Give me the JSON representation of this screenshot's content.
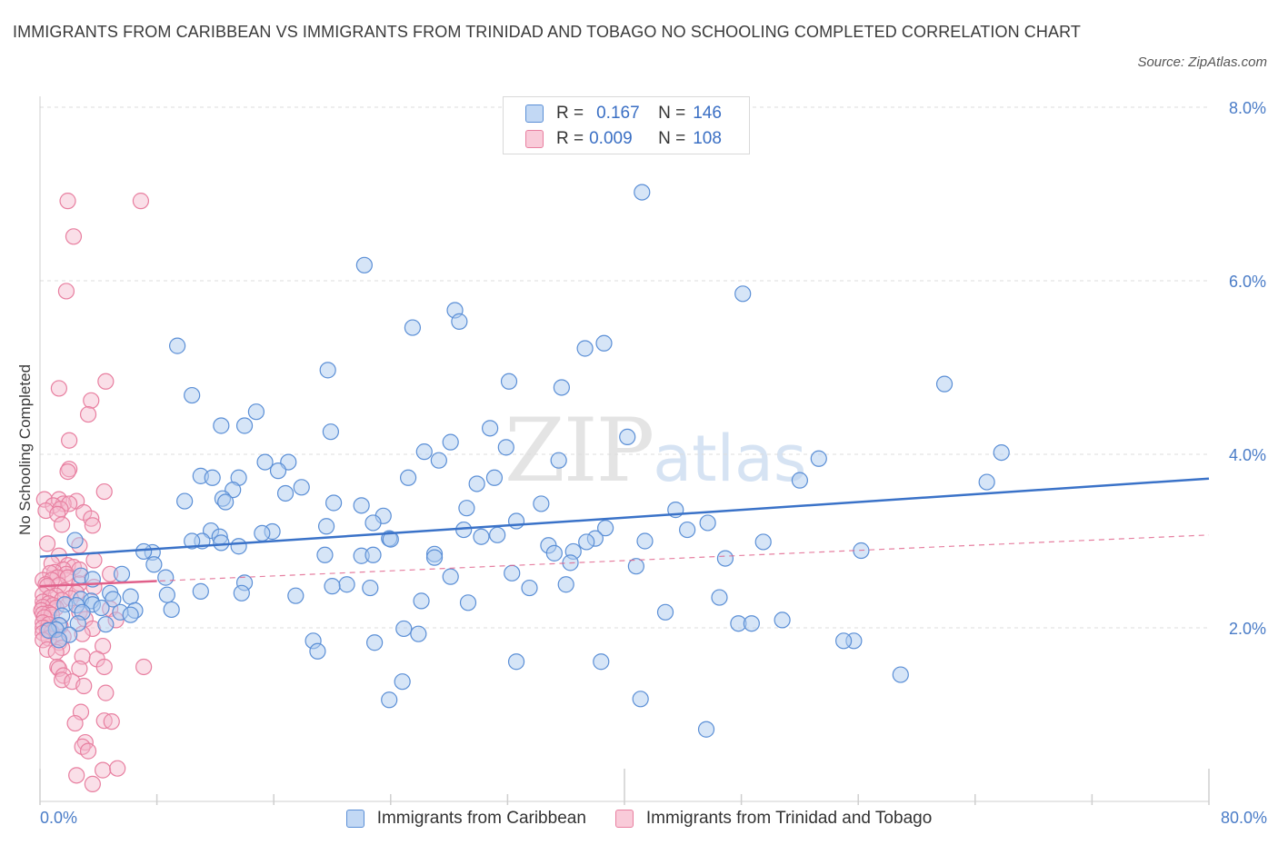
{
  "title": "IMMIGRANTS FROM CARIBBEAN VS IMMIGRANTS FROM TRINIDAD AND TOBAGO NO SCHOOLING COMPLETED CORRELATION CHART",
  "source": "Source: ZipAtlas.com",
  "watermark": {
    "zip": "ZIP",
    "atlas": "atlas"
  },
  "legend": {
    "r_label": "R =",
    "n_label": "N =",
    "rows": [
      {
        "r": "0.167",
        "n": "146"
      },
      {
        "r": "0.009",
        "n": "108"
      }
    ]
  },
  "colors": {
    "blue_fill": "#aecbf0",
    "blue_stroke": "#5b8fd6",
    "blue_line": "#3a72c8",
    "pink_fill": "#f5b7cb",
    "pink_stroke": "#e87fa0",
    "pink_line": "#e0608a",
    "axis_text": "#4a7cc7"
  },
  "chart_data": {
    "type": "scatter",
    "xlabel": "",
    "ylabel": "No Schooling Completed",
    "xlim": [
      0,
      80
    ],
    "ylim": [
      0,
      8
    ],
    "x_tick_labels": [
      "0.0%",
      "80.0%"
    ],
    "y_ticks": [
      2,
      4,
      6,
      8
    ],
    "y_tick_labels": [
      "2.0%",
      "4.0%",
      "6.0%",
      "8.0%"
    ],
    "grid": true,
    "legend_position": "top-center",
    "series": [
      {
        "name": "Immigrants from Caribbean",
        "color": "blue",
        "trend": {
          "x": [
            0,
            80
          ],
          "y": [
            2.82,
            3.72
          ],
          "style": "solid"
        },
        "points": [
          [
            41.2,
            7.02
          ],
          [
            22.2,
            6.18
          ],
          [
            48.1,
            5.85
          ],
          [
            28.4,
            5.66
          ],
          [
            28.7,
            5.53
          ],
          [
            25.5,
            5.46
          ],
          [
            38.6,
            5.28
          ],
          [
            37.3,
            5.22
          ],
          [
            9.4,
            5.25
          ],
          [
            19.7,
            4.97
          ],
          [
            32.1,
            4.84
          ],
          [
            61.9,
            4.81
          ],
          [
            35.7,
            4.77
          ],
          [
            10.4,
            4.68
          ],
          [
            14.8,
            4.49
          ],
          [
            12.4,
            4.33
          ],
          [
            14.0,
            4.33
          ],
          [
            30.8,
            4.3
          ],
          [
            19.9,
            4.26
          ],
          [
            40.2,
            4.2
          ],
          [
            28.1,
            4.14
          ],
          [
            31.9,
            4.08
          ],
          [
            26.3,
            4.03
          ],
          [
            65.8,
            4.02
          ],
          [
            53.3,
            3.95
          ],
          [
            35.5,
            3.93
          ],
          [
            27.3,
            3.93
          ],
          [
            15.4,
            3.91
          ],
          [
            17.0,
            3.91
          ],
          [
            16.3,
            3.81
          ],
          [
            11.0,
            3.75
          ],
          [
            11.8,
            3.73
          ],
          [
            13.6,
            3.73
          ],
          [
            25.2,
            3.73
          ],
          [
            31.1,
            3.73
          ],
          [
            52.0,
            3.7
          ],
          [
            64.8,
            3.68
          ],
          [
            29.9,
            3.66
          ],
          [
            17.9,
            3.62
          ],
          [
            13.2,
            3.59
          ],
          [
            16.8,
            3.55
          ],
          [
            12.5,
            3.49
          ],
          [
            9.9,
            3.46
          ],
          [
            12.7,
            3.45
          ],
          [
            20.1,
            3.44
          ],
          [
            34.3,
            3.43
          ],
          [
            22.0,
            3.41
          ],
          [
            29.2,
            3.38
          ],
          [
            43.5,
            3.36
          ],
          [
            23.5,
            3.29
          ],
          [
            32.6,
            3.23
          ],
          [
            22.8,
            3.21
          ],
          [
            45.7,
            3.21
          ],
          [
            19.6,
            3.17
          ],
          [
            38.7,
            3.15
          ],
          [
            44.3,
            3.13
          ],
          [
            29.0,
            3.13
          ],
          [
            11.7,
            3.12
          ],
          [
            15.9,
            3.11
          ],
          [
            15.2,
            3.09
          ],
          [
            31.3,
            3.07
          ],
          [
            12.3,
            3.05
          ],
          [
            30.2,
            3.05
          ],
          [
            38.0,
            3.03
          ],
          [
            23.9,
            3.03
          ],
          [
            24.0,
            3.02
          ],
          [
            11.1,
            3.0
          ],
          [
            41.4,
            3.0
          ],
          [
            2.4,
            3.01
          ],
          [
            10.4,
            3.0
          ],
          [
            37.4,
            2.99
          ],
          [
            49.5,
            2.99
          ],
          [
            12.4,
            2.98
          ],
          [
            34.8,
            2.95
          ],
          [
            13.6,
            2.94
          ],
          [
            36.5,
            2.88
          ],
          [
            35.2,
            2.86
          ],
          [
            7.7,
            2.87
          ],
          [
            56.2,
            2.89
          ],
          [
            7.1,
            2.88
          ],
          [
            27.0,
            2.85
          ],
          [
            19.5,
            2.84
          ],
          [
            22.0,
            2.83
          ],
          [
            22.8,
            2.84
          ],
          [
            27.0,
            2.81
          ],
          [
            46.9,
            2.8
          ],
          [
            36.3,
            2.75
          ],
          [
            7.8,
            2.73
          ],
          [
            40.8,
            2.71
          ],
          [
            32.3,
            2.63
          ],
          [
            5.6,
            2.62
          ],
          [
            2.8,
            2.6
          ],
          [
            8.6,
            2.58
          ],
          [
            28.1,
            2.59
          ],
          [
            3.6,
            2.56
          ],
          [
            14.0,
            2.52
          ],
          [
            21.0,
            2.5
          ],
          [
            36.0,
            2.5
          ],
          [
            20.0,
            2.48
          ],
          [
            22.6,
            2.46
          ],
          [
            33.5,
            2.46
          ],
          [
            11.0,
            2.42
          ],
          [
            4.8,
            2.4
          ],
          [
            13.8,
            2.4
          ],
          [
            8.7,
            2.38
          ],
          [
            17.5,
            2.37
          ],
          [
            6.2,
            2.36
          ],
          [
            46.5,
            2.35
          ],
          [
            2.8,
            2.33
          ],
          [
            5.0,
            2.33
          ],
          [
            26.1,
            2.31
          ],
          [
            3.5,
            2.31
          ],
          [
            29.3,
            2.29
          ],
          [
            1.7,
            2.27
          ],
          [
            3.6,
            2.27
          ],
          [
            2.5,
            2.26
          ],
          [
            4.2,
            2.23
          ],
          [
            6.5,
            2.2
          ],
          [
            9.0,
            2.21
          ],
          [
            42.8,
            2.18
          ],
          [
            2.9,
            2.18
          ],
          [
            5.5,
            2.18
          ],
          [
            6.2,
            2.15
          ],
          [
            1.5,
            2.14
          ],
          [
            50.8,
            2.09
          ],
          [
            47.8,
            2.05
          ],
          [
            48.7,
            2.05
          ],
          [
            2.6,
            2.05
          ],
          [
            4.5,
            2.04
          ],
          [
            1.3,
            2.03
          ],
          [
            1.1,
            1.98
          ],
          [
            24.9,
            1.99
          ],
          [
            0.6,
            1.97
          ],
          [
            25.9,
            1.93
          ],
          [
            2.0,
            1.92
          ],
          [
            1.3,
            1.86
          ],
          [
            18.7,
            1.85
          ],
          [
            55.7,
            1.85
          ],
          [
            55.0,
            1.85
          ],
          [
            22.9,
            1.83
          ],
          [
            19.0,
            1.73
          ],
          [
            32.6,
            1.61
          ],
          [
            38.4,
            1.61
          ],
          [
            58.9,
            1.46
          ],
          [
            24.8,
            1.38
          ],
          [
            23.9,
            1.17
          ],
          [
            41.1,
            1.18
          ],
          [
            45.6,
            0.83
          ]
        ]
      },
      {
        "name": "Immigrants from Trinidad and Tobago",
        "color": "pink",
        "trend": {
          "x": [
            0,
            80
          ],
          "y": [
            2.48,
            3.07
          ],
          "style": "dashed",
          "solid_until": 8
        },
        "points": [
          [
            1.9,
            6.92
          ],
          [
            6.9,
            6.92
          ],
          [
            2.3,
            6.51
          ],
          [
            1.8,
            5.88
          ],
          [
            4.5,
            4.84
          ],
          [
            1.3,
            4.76
          ],
          [
            3.5,
            4.62
          ],
          [
            3.3,
            4.46
          ],
          [
            2.0,
            4.16
          ],
          [
            2.0,
            3.83
          ],
          [
            1.9,
            3.8
          ],
          [
            4.4,
            3.57
          ],
          [
            0.3,
            3.48
          ],
          [
            1.3,
            3.48
          ],
          [
            2.5,
            3.46
          ],
          [
            1.6,
            3.43
          ],
          [
            2.0,
            3.43
          ],
          [
            0.9,
            3.41
          ],
          [
            1.4,
            3.37
          ],
          [
            0.4,
            3.35
          ],
          [
            3.0,
            3.33
          ],
          [
            1.2,
            3.31
          ],
          [
            3.5,
            3.26
          ],
          [
            1.5,
            3.19
          ],
          [
            3.6,
            3.18
          ],
          [
            0.5,
            2.97
          ],
          [
            2.7,
            2.95
          ],
          [
            1.3,
            2.83
          ],
          [
            3.7,
            2.78
          ],
          [
            0.8,
            2.74
          ],
          [
            1.9,
            2.72
          ],
          [
            2.3,
            2.7
          ],
          [
            2.7,
            2.67
          ],
          [
            1.6,
            2.67
          ],
          [
            1.0,
            2.64
          ],
          [
            0.7,
            2.63
          ],
          [
            4.8,
            2.62
          ],
          [
            1.8,
            2.62
          ],
          [
            1.2,
            2.58
          ],
          [
            1.9,
            2.58
          ],
          [
            0.2,
            2.55
          ],
          [
            0.8,
            2.55
          ],
          [
            2.7,
            2.51
          ],
          [
            0.4,
            2.5
          ],
          [
            1.3,
            2.49
          ],
          [
            0.5,
            2.48
          ],
          [
            3.7,
            2.47
          ],
          [
            1.7,
            2.43
          ],
          [
            2.5,
            2.4
          ],
          [
            0.2,
            2.38
          ],
          [
            1.1,
            2.37
          ],
          [
            0.7,
            2.35
          ],
          [
            2.1,
            2.34
          ],
          [
            1.5,
            2.32
          ],
          [
            0.2,
            2.3
          ],
          [
            0.6,
            2.28
          ],
          [
            0.9,
            2.26
          ],
          [
            0.2,
            2.24
          ],
          [
            1.1,
            2.23
          ],
          [
            4.8,
            2.22
          ],
          [
            0.1,
            2.2
          ],
          [
            2.7,
            2.18
          ],
          [
            0.6,
            2.17
          ],
          [
            0.2,
            2.16
          ],
          [
            0.8,
            2.15
          ],
          [
            0.3,
            2.12
          ],
          [
            3.1,
            2.1
          ],
          [
            5.2,
            2.09
          ],
          [
            0.2,
            2.06
          ],
          [
            0.6,
            2.04
          ],
          [
            1.4,
            2.02
          ],
          [
            0.2,
            2.0
          ],
          [
            3.6,
            1.99
          ],
          [
            0.5,
            1.97
          ],
          [
            0.8,
            1.95
          ],
          [
            0.2,
            1.94
          ],
          [
            2.9,
            1.93
          ],
          [
            1.6,
            1.9
          ],
          [
            0.6,
            1.88
          ],
          [
            0.2,
            1.86
          ],
          [
            1.3,
            1.83
          ],
          [
            4.3,
            1.79
          ],
          [
            1.5,
            1.77
          ],
          [
            0.5,
            1.75
          ],
          [
            1.1,
            1.72
          ],
          [
            2.9,
            1.67
          ],
          [
            3.9,
            1.64
          ],
          [
            1.2,
            1.55
          ],
          [
            1.3,
            1.53
          ],
          [
            7.1,
            1.55
          ],
          [
            2.7,
            1.53
          ],
          [
            4.4,
            1.55
          ],
          [
            1.6,
            1.45
          ],
          [
            1.5,
            1.4
          ],
          [
            2.2,
            1.38
          ],
          [
            3.0,
            1.33
          ],
          [
            4.5,
            1.25
          ],
          [
            2.8,
            1.03
          ],
          [
            4.4,
            0.93
          ],
          [
            2.4,
            0.9
          ],
          [
            4.9,
            0.92
          ],
          [
            3.1,
            0.68
          ],
          [
            2.9,
            0.63
          ],
          [
            3.3,
            0.58
          ],
          [
            4.3,
            0.36
          ],
          [
            5.3,
            0.38
          ],
          [
            2.5,
            0.3
          ],
          [
            3.6,
            0.2
          ]
        ]
      }
    ]
  },
  "bottom_legend": [
    "Immigrants from Caribbean",
    "Immigrants from Trinidad and Tobago"
  ]
}
